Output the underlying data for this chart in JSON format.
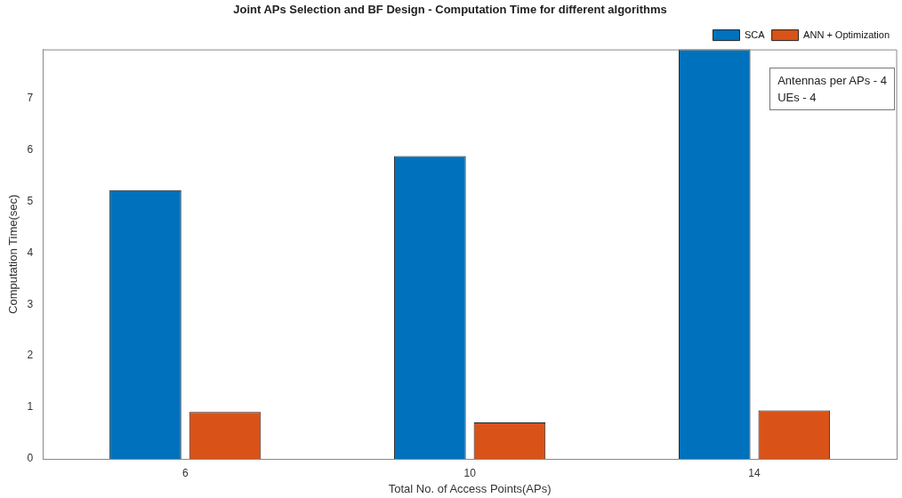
{
  "chart_data": {
    "type": "bar",
    "title": "Joint APs Selection and BF Design - Computation Time for different algorithms",
    "xlabel": "Total No. of Access Points(APs)",
    "ylabel": "Computation Time(sec)",
    "categories": [
      "6",
      "10",
      "14"
    ],
    "series": [
      {
        "name": "SCA",
        "color": "#0072bd",
        "values": [
          5.22,
          5.88,
          7.95
        ]
      },
      {
        "name": "ANN + Optimization",
        "color": "#d95319",
        "values": [
          0.91,
          0.71,
          0.94
        ]
      }
    ],
    "ylim": [
      0,
      7.95
    ],
    "yticks": [
      0,
      1,
      2,
      3,
      4,
      5,
      6,
      7
    ],
    "grid": false,
    "legend": "top right",
    "annotations": [
      "Antennas per APs - 4\nUEs - 4"
    ]
  }
}
